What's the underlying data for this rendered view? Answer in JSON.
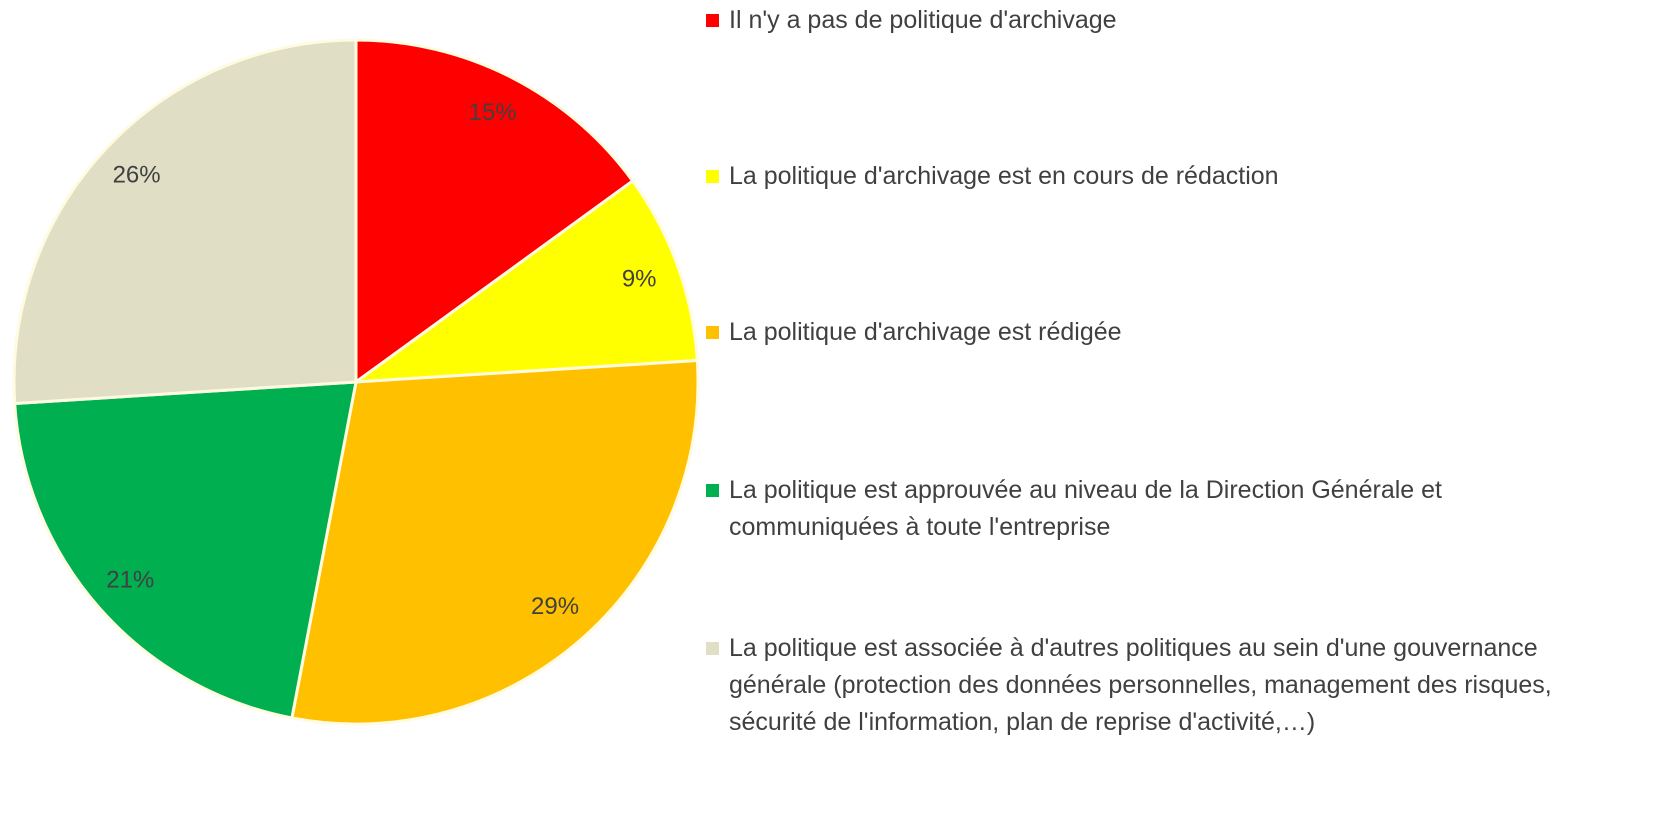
{
  "chart_data": {
    "type": "pie",
    "categories": [
      "Il n'y a pas de politique d'archivage",
      "La politique d'archivage est en cours de rédaction",
      "La politique d'archivage est rédigée",
      "La politique est approuvée au niveau de la Direction Générale et communiquées à toute l'entreprise",
      "La politique est associée à d'autres politiques au sein d'une gouvernance générale (protection des données personnelles, management des risques, sécurité de l'information, plan de reprise d'activité,…)"
    ],
    "values": [
      15,
      9,
      29,
      21,
      26
    ],
    "value_labels": [
      "15%",
      "9%",
      "29%",
      "21%",
      "26%"
    ],
    "colors": [
      "#ff0000",
      "#ffff00",
      "#ffc000",
      "#00b050",
      "#e0dfc6"
    ],
    "legend": "right"
  }
}
